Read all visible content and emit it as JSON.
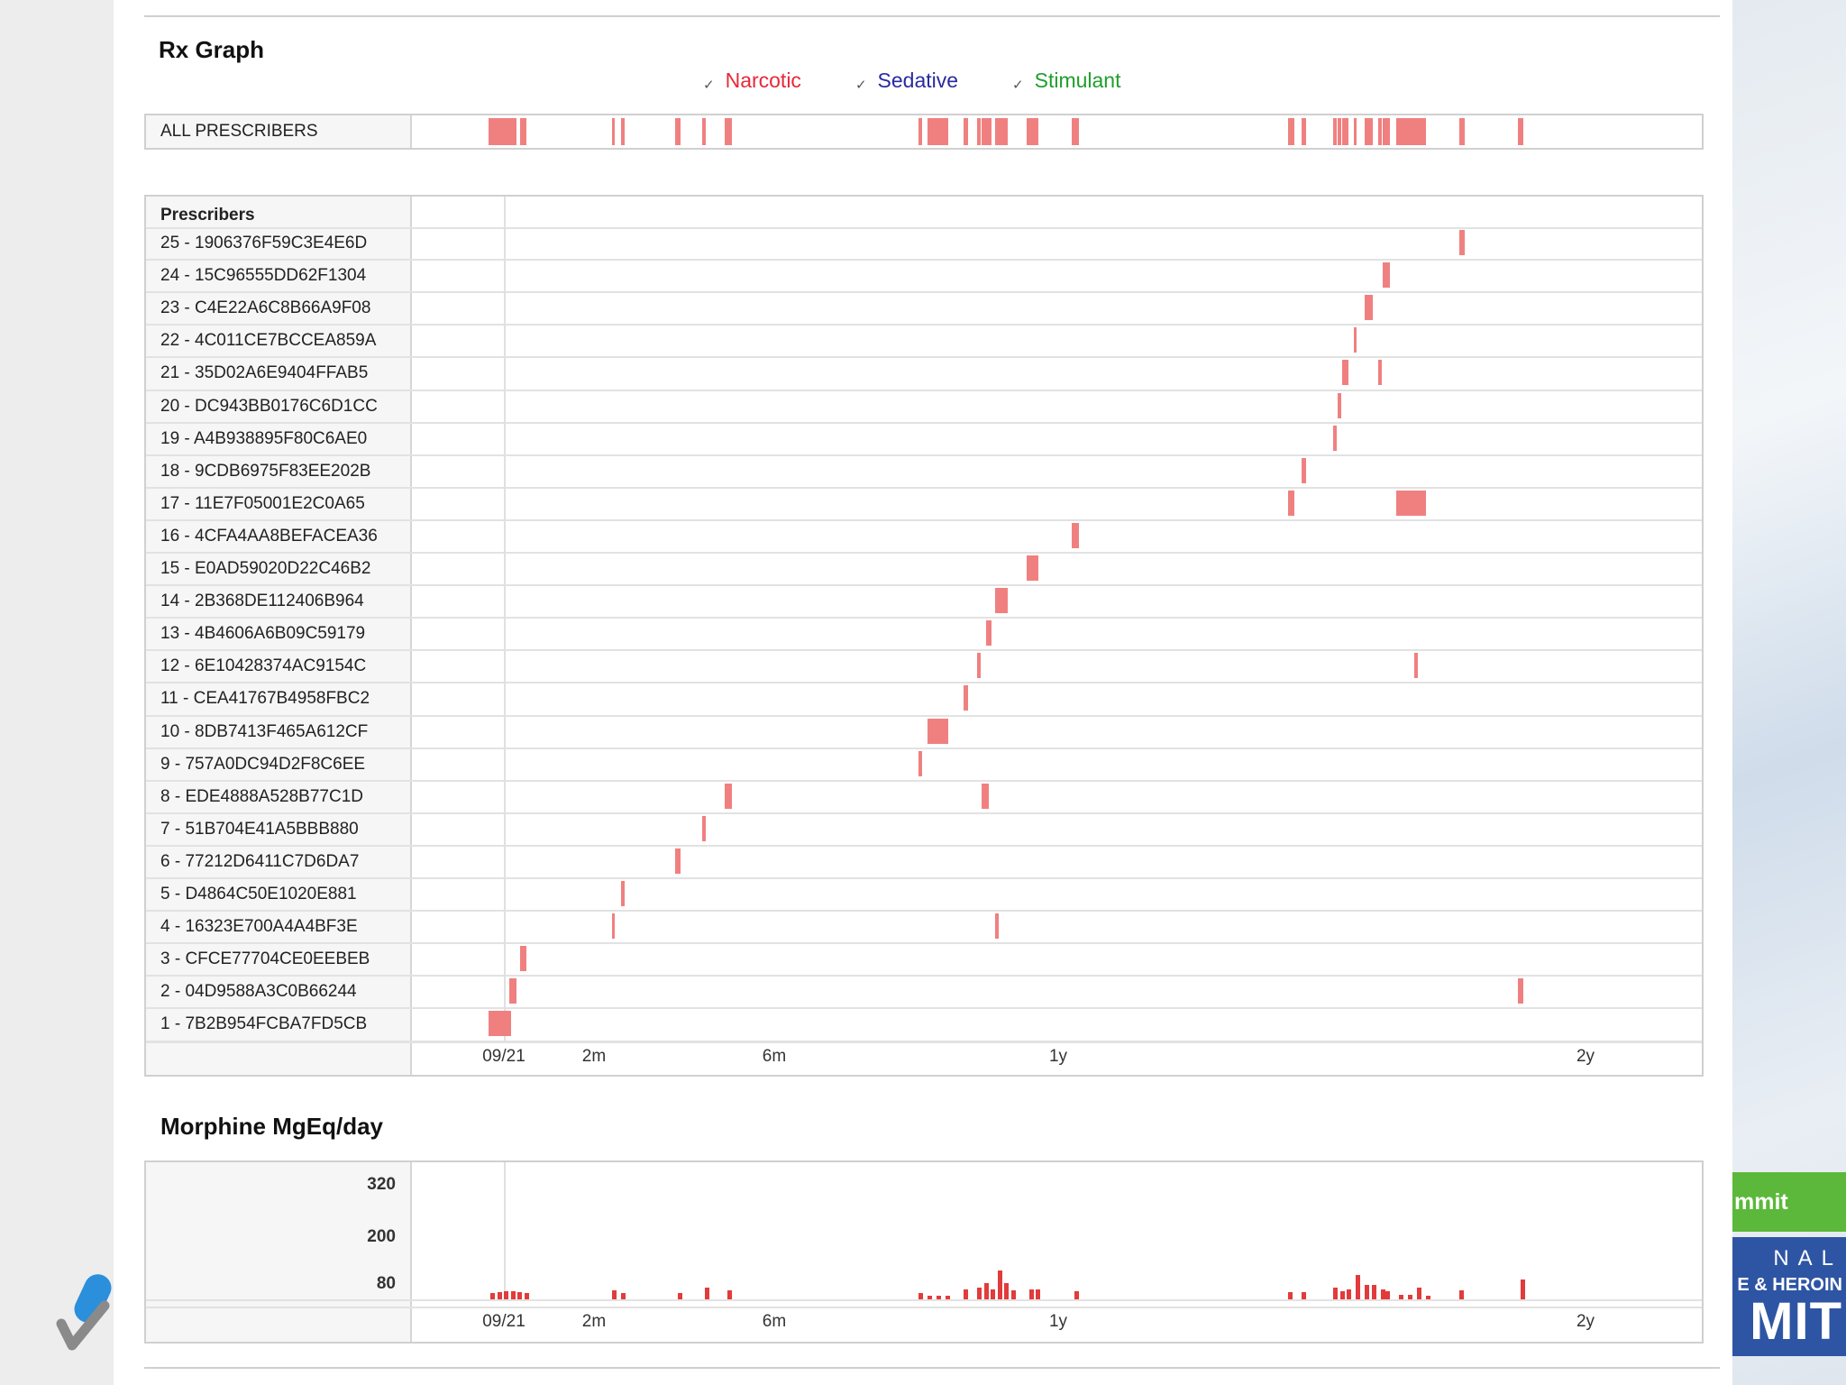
{
  "rx_graph": {
    "title": "Rx Graph",
    "legend": [
      {
        "label": "Narcotic",
        "color": "#e8283a",
        "checked": true
      },
      {
        "label": "Sedative",
        "color": "#2a2aa0",
        "checked": true
      },
      {
        "label": "Stimulant",
        "color": "#1f9e2c",
        "checked": true
      }
    ],
    "all_prescribers_label": "ALL PRESCRIBERS",
    "prescribers_header": "Prescribers",
    "prescribers": [
      "25 - 1906376F59C3E4E6D",
      "24 - 15C96555DD62F1304",
      "23 - C4E22A6C8B66A9F08",
      "22 - 4C011CE7BCCEA859A",
      "21 - 35D02A6E9404FFAB5",
      "20 - DC943BB0176C6D1CC",
      "19 - A4B938895F80C6AE0",
      "18 - 9CDB6975F83EE202B",
      "17 - 11E7F05001E2C0A65",
      "16 - 4CFA4AA8BEFACEA36",
      "15 - E0AD59020D22C46B2",
      "14 - 2B368DE112406B964",
      "13 - 4B4606A6B09C59179",
      "12 - 6E10428374AC9154C",
      "11 - CEA41767B4958FBC2",
      "10 - 8DB7413F465A612CF",
      "9 - 757A0DC94D2F8C6EE",
      "8 - EDE4888A528B77C1D",
      "7 - 51B704E41A5BBB880",
      "6 - 77212D6411C7D6DA7",
      "5 - D4864C50E1020E881",
      "4 - 16323E700A4A4BF3E",
      "3 - CFCE77704CE0EEBEB",
      "2 - 04D9588A3C0B66244",
      "1 - 7B2B954FCBA7FD5CB"
    ],
    "time_axis": {
      "ticks": [
        {
          "label": "09/21",
          "month": 0
        },
        {
          "label": "2m",
          "month": 2
        },
        {
          "label": "6m",
          "month": 6
        },
        {
          "label": "1y",
          "month": 12.3
        },
        {
          "label": "2y",
          "month": 24
        }
      ]
    },
    "events": [
      {
        "row": 25,
        "start": 21.2,
        "dur": 0.12
      },
      {
        "row": 24,
        "start": 19.5,
        "dur": 0.15
      },
      {
        "row": 23,
        "start": 19.1,
        "dur": 0.18
      },
      {
        "row": 22,
        "start": 18.85,
        "dur": 0.06
      },
      {
        "row": 21,
        "start": 18.6,
        "dur": 0.13
      },
      {
        "row": 21,
        "start": 19.4,
        "dur": 0.08
      },
      {
        "row": 20,
        "start": 18.5,
        "dur": 0.07
      },
      {
        "row": 19,
        "start": 18.4,
        "dur": 0.07
      },
      {
        "row": 18,
        "start": 17.7,
        "dur": 0.1
      },
      {
        "row": 17,
        "start": 17.4,
        "dur": 0.13
      },
      {
        "row": 17,
        "start": 19.8,
        "dur": 0.65
      },
      {
        "row": 16,
        "start": 12.6,
        "dur": 0.15
      },
      {
        "row": 15,
        "start": 11.6,
        "dur": 0.26
      },
      {
        "row": 14,
        "start": 10.9,
        "dur": 0.28
      },
      {
        "row": 13,
        "start": 10.7,
        "dur": 0.12
      },
      {
        "row": 12,
        "start": 10.5,
        "dur": 0.07
      },
      {
        "row": 12,
        "start": 20.2,
        "dur": 0.07
      },
      {
        "row": 11,
        "start": 10.2,
        "dur": 0.1
      },
      {
        "row": 10,
        "start": 9.4,
        "dur": 0.45
      },
      {
        "row": 9,
        "start": 9.2,
        "dur": 0.07
      },
      {
        "row": 8,
        "start": 4.9,
        "dur": 0.15
      },
      {
        "row": 8,
        "start": 10.6,
        "dur": 0.16
      },
      {
        "row": 7,
        "start": 4.4,
        "dur": 0.07
      },
      {
        "row": 6,
        "start": 3.8,
        "dur": 0.12
      },
      {
        "row": 5,
        "start": 2.6,
        "dur": 0.07
      },
      {
        "row": 4,
        "start": 2.4,
        "dur": 0.05
      },
      {
        "row": 4,
        "start": 10.9,
        "dur": 0.07
      },
      {
        "row": 3,
        "start": 0.35,
        "dur": 0.15
      },
      {
        "row": 2,
        "start": 0.12,
        "dur": 0.15
      },
      {
        "row": 2,
        "start": 22.5,
        "dur": 0.12
      },
      {
        "row": 1,
        "start": -0.35,
        "dur": 0.5
      }
    ]
  },
  "morphine_chart": {
    "title": "Morphine MgEq/day",
    "chart_data": {
      "type": "bar",
      "y_ticks": [
        "320",
        "200",
        "80"
      ],
      "y_tick_values": [
        320,
        200,
        80
      ],
      "ylim": [
        0,
        320
      ],
      "x_ticks": [
        "09/21",
        "2m",
        "6m",
        "1y",
        "2y"
      ],
      "x_unit": "months since 09/21",
      "bars": [
        {
          "x": -0.3,
          "y": 15
        },
        {
          "x": -0.15,
          "y": 18
        },
        {
          "x": 0.0,
          "y": 20
        },
        {
          "x": 0.15,
          "y": 20
        },
        {
          "x": 0.3,
          "y": 18
        },
        {
          "x": 0.45,
          "y": 16
        },
        {
          "x": 2.4,
          "y": 22
        },
        {
          "x": 2.6,
          "y": 15
        },
        {
          "x": 3.85,
          "y": 15
        },
        {
          "x": 4.45,
          "y": 28
        },
        {
          "x": 4.95,
          "y": 22
        },
        {
          "x": 9.2,
          "y": 15
        },
        {
          "x": 9.4,
          "y": 10
        },
        {
          "x": 9.6,
          "y": 10
        },
        {
          "x": 9.8,
          "y": 10
        },
        {
          "x": 10.2,
          "y": 25
        },
        {
          "x": 10.5,
          "y": 30
        },
        {
          "x": 10.65,
          "y": 40
        },
        {
          "x": 10.8,
          "y": 25
        },
        {
          "x": 10.95,
          "y": 72
        },
        {
          "x": 11.1,
          "y": 40
        },
        {
          "x": 11.25,
          "y": 22
        },
        {
          "x": 11.65,
          "y": 25
        },
        {
          "x": 11.8,
          "y": 25
        },
        {
          "x": 12.65,
          "y": 20
        },
        {
          "x": 17.4,
          "y": 18
        },
        {
          "x": 17.7,
          "y": 18
        },
        {
          "x": 18.4,
          "y": 30
        },
        {
          "x": 18.55,
          "y": 20
        },
        {
          "x": 18.7,
          "y": 25
        },
        {
          "x": 18.9,
          "y": 60
        },
        {
          "x": 19.1,
          "y": 35
        },
        {
          "x": 19.25,
          "y": 35
        },
        {
          "x": 19.45,
          "y": 25
        },
        {
          "x": 19.55,
          "y": 20
        },
        {
          "x": 19.85,
          "y": 12
        },
        {
          "x": 20.05,
          "y": 12
        },
        {
          "x": 20.25,
          "y": 30
        },
        {
          "x": 20.45,
          "y": 10
        },
        {
          "x": 21.2,
          "y": 22
        },
        {
          "x": 22.55,
          "y": 50
        }
      ]
    }
  }
}
